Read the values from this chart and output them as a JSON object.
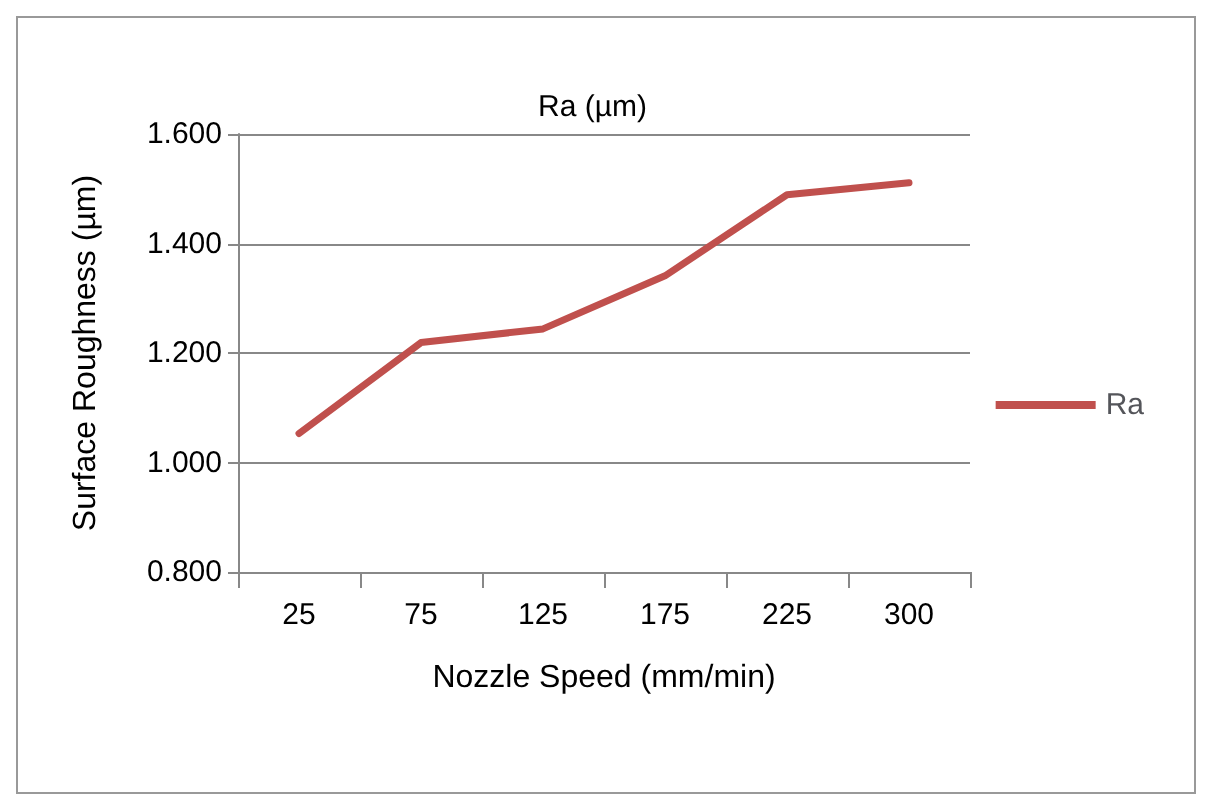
{
  "chart_data": {
    "type": "line",
    "title": "Ra (µm)",
    "xlabel": "Nozzle Speed (mm/min)",
    "ylabel": "Surface Roughness (µm)",
    "categories": [
      "25",
      "75",
      "125",
      "175",
      "225",
      "300"
    ],
    "series": [
      {
        "name": "Ra",
        "color": "#c0504d",
        "values": [
          1.053,
          1.219,
          1.244,
          1.341,
          1.489,
          1.511
        ]
      }
    ],
    "ylim": [
      0.8,
      1.6
    ],
    "yticks": [
      {
        "value": 0.8,
        "label": "0.800"
      },
      {
        "value": 1.0,
        "label": "1.000"
      },
      {
        "value": 1.2,
        "label": "1.200"
      },
      {
        "value": 1.4,
        "label": "1.400"
      },
      {
        "value": 1.6,
        "label": "1.600"
      }
    ],
    "grid": "y",
    "legend": "right",
    "marker": "none",
    "line_style": "solid"
  }
}
